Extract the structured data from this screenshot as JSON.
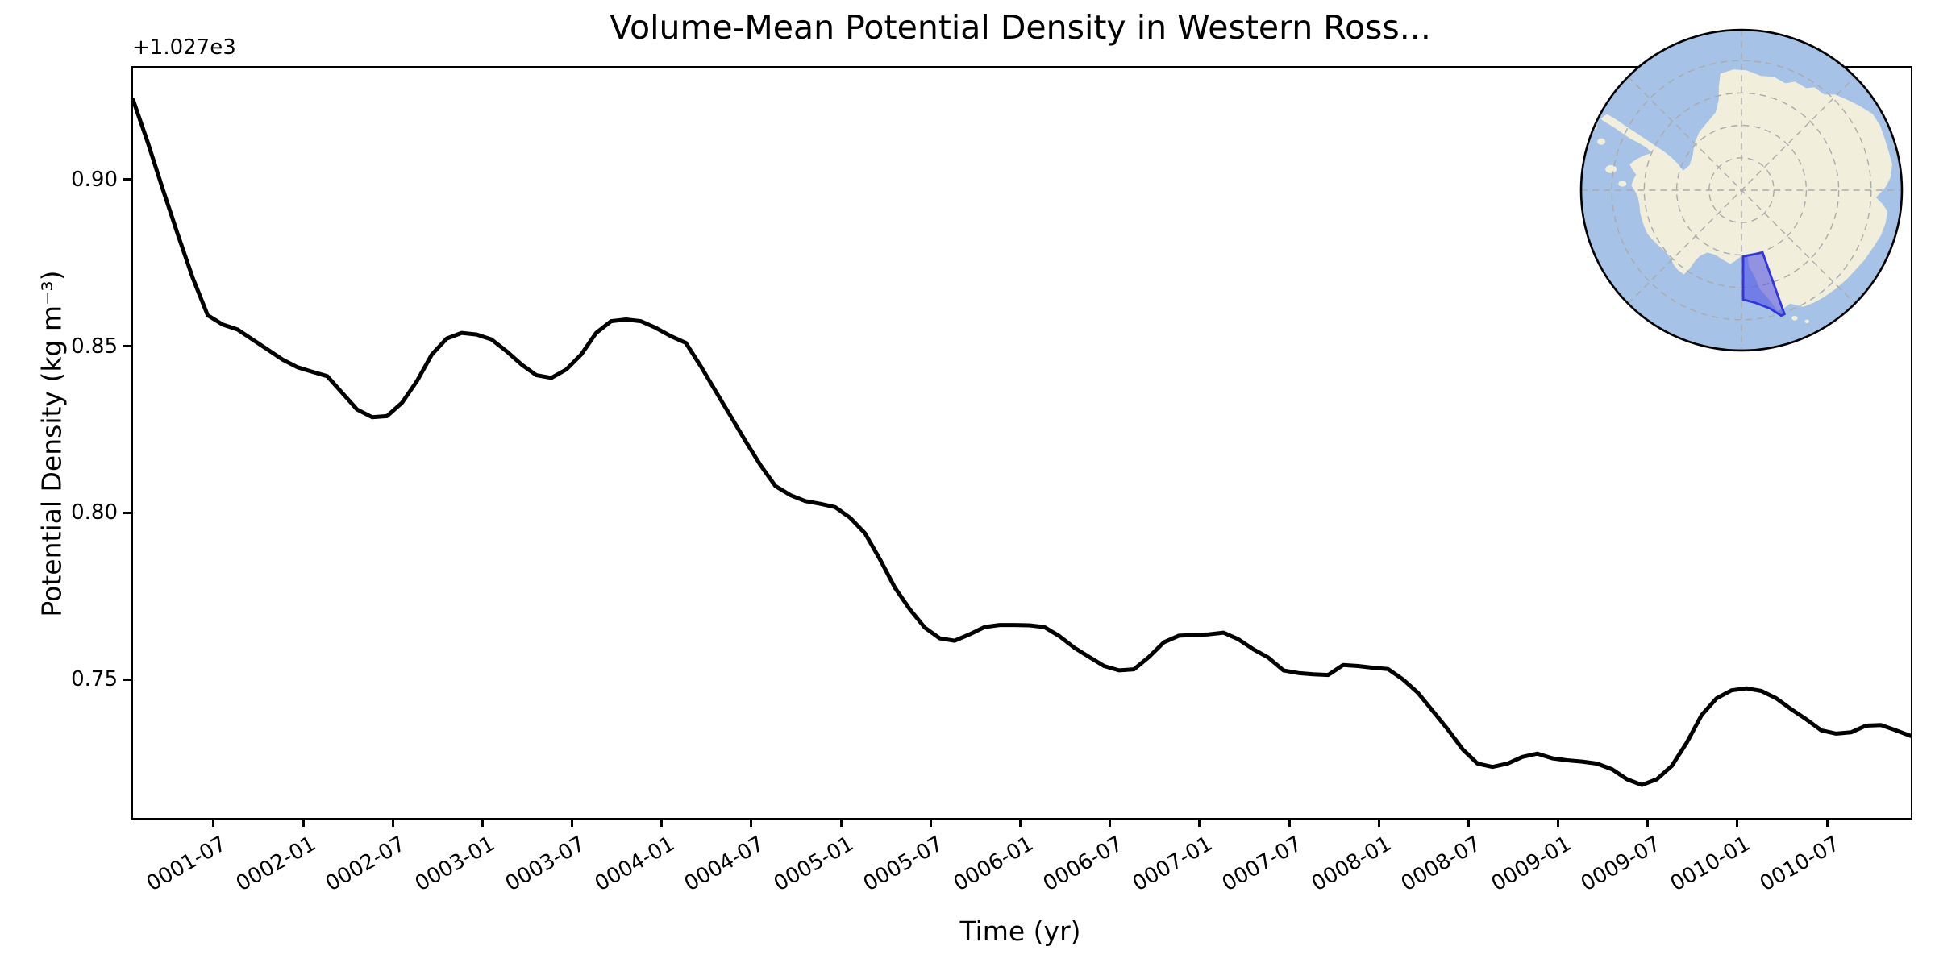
{
  "title": "Volume-Mean Potential Density in Western Ross...",
  "axes": {
    "xlabel": "Time (yr)",
    "ylabel": "Potential Density (kg m⁻³)",
    "offset_text": "+1.027e3",
    "x_tick_labels": [
      "0001-07",
      "0002-01",
      "0002-07",
      "0003-01",
      "0003-07",
      "0004-01",
      "0004-07",
      "0005-01",
      "0005-07",
      "0006-01",
      "0006-07",
      "0007-01",
      "0007-07",
      "0008-01",
      "0008-07",
      "0009-01",
      "0009-07",
      "0010-01",
      "0010-07"
    ],
    "x_tick_positions_months": [
      5.5,
      11.5,
      17.5,
      23.5,
      29.5,
      35.5,
      41.5,
      47.5,
      53.5,
      59.5,
      65.5,
      71.5,
      77.5,
      83.5,
      89.5,
      95.5,
      101.5,
      107.5,
      113.5
    ],
    "y_tick_labels": [
      "0.90",
      "0.85",
      "0.80",
      "0.75"
    ],
    "y_tick_values": [
      0.9,
      0.85,
      0.8,
      0.75
    ]
  },
  "chart_data": {
    "type": "line",
    "title": "Volume-Mean Potential Density in Western Ross...",
    "xlabel": "Time (yr)",
    "ylabel": "Potential Density (kg m⁻³)",
    "y_offset": "+1.027e3",
    "y_offset_value": 1027,
    "ylim": [
      0.7089,
      0.9341
    ],
    "grid": false,
    "legend": "none",
    "line_color": "#000000",
    "line_width": 5,
    "x": [
      "0001-01",
      "0001-02",
      "0001-03",
      "0001-04",
      "0001-05",
      "0001-06",
      "0001-07",
      "0001-08",
      "0001-09",
      "0001-10",
      "0001-11",
      "0001-12",
      "0002-01",
      "0002-02",
      "0002-03",
      "0002-04",
      "0002-05",
      "0002-06",
      "0002-07",
      "0002-08",
      "0002-09",
      "0002-10",
      "0002-11",
      "0002-12",
      "0003-01",
      "0003-02",
      "0003-03",
      "0003-04",
      "0003-05",
      "0003-06",
      "0003-07",
      "0003-08",
      "0003-09",
      "0003-10",
      "0003-11",
      "0003-12",
      "0004-01",
      "0004-02",
      "0004-03",
      "0004-04",
      "0004-05",
      "0004-06",
      "0004-07",
      "0004-08",
      "0004-09",
      "0004-10",
      "0004-11",
      "0004-12",
      "0005-01",
      "0005-02",
      "0005-03",
      "0005-04",
      "0005-05",
      "0005-06",
      "0005-07",
      "0005-08",
      "0005-09",
      "0005-10",
      "0005-11",
      "0005-12",
      "0006-01",
      "0006-02",
      "0006-03",
      "0006-04",
      "0006-05",
      "0006-06",
      "0006-07",
      "0006-08",
      "0006-09",
      "0006-10",
      "0006-11",
      "0006-12",
      "0007-01",
      "0007-02",
      "0007-03",
      "0007-04",
      "0007-05",
      "0007-06",
      "0007-07",
      "0007-08",
      "0007-09",
      "0007-10",
      "0007-11",
      "0007-12",
      "0008-01",
      "0008-02",
      "0008-03",
      "0008-04",
      "0008-05",
      "0008-06",
      "0008-07",
      "0008-08",
      "0008-09",
      "0008-10",
      "0008-11",
      "0008-12",
      "0009-01",
      "0009-02",
      "0009-03",
      "0009-04",
      "0009-05",
      "0009-06",
      "0009-07",
      "0009-08",
      "0009-09",
      "0009-10",
      "0009-11",
      "0009-12",
      "0010-01",
      "0010-02",
      "0010-03",
      "0010-04",
      "0010-05",
      "0010-06",
      "0010-07",
      "0010-08",
      "0010-09",
      "0010-10",
      "0010-11",
      "0010-12"
    ],
    "series": [
      {
        "name": "volume-mean potential density (offset by +1.027e3 kg m⁻³)",
        "values": [
          0.9245,
          0.9115,
          0.8975,
          0.884,
          0.871,
          0.8598,
          0.857,
          0.8555,
          0.8525,
          0.8495,
          0.8465,
          0.8442,
          0.8428,
          0.8415,
          0.8365,
          0.8315,
          0.8292,
          0.8295,
          0.8335,
          0.84,
          0.848,
          0.8528,
          0.8545,
          0.854,
          0.8525,
          0.849,
          0.845,
          0.8418,
          0.841,
          0.8435,
          0.848,
          0.8545,
          0.858,
          0.8585,
          0.858,
          0.856,
          0.8535,
          0.8515,
          0.8445,
          0.837,
          0.8295,
          0.822,
          0.8148,
          0.8085,
          0.8058,
          0.804,
          0.8032,
          0.8022,
          0.799,
          0.7943,
          0.7865,
          0.778,
          0.7715,
          0.766,
          0.7628,
          0.7621,
          0.764,
          0.7662,
          0.7668,
          0.7668,
          0.7667,
          0.7662,
          0.7635,
          0.76,
          0.7572,
          0.7545,
          0.7532,
          0.7535,
          0.7572,
          0.7616,
          0.7636,
          0.7638,
          0.764,
          0.7645,
          0.7625,
          0.7595,
          0.757,
          0.7532,
          0.7524,
          0.752,
          0.7518,
          0.7548,
          0.7545,
          0.754,
          0.7536,
          0.7505,
          0.7465,
          0.741,
          0.7355,
          0.7295,
          0.7252,
          0.7242,
          0.7252,
          0.7272,
          0.7282,
          0.7268,
          0.7262,
          0.7258,
          0.7252,
          0.7235,
          0.7205,
          0.7188,
          0.7205,
          0.7245,
          0.7315,
          0.7398,
          0.7448,
          0.7472,
          0.7478,
          0.747,
          0.7448,
          0.7415,
          0.7385,
          0.7352,
          0.7342,
          0.7346,
          0.7366,
          0.7368,
          0.7352,
          0.7335
        ]
      }
    ]
  },
  "inset_map": {
    "kind": "south-polar antarctica locator globe",
    "ocean_color": "#a6c3e7",
    "land_color": "#f1efdb",
    "graticule_color": "#aaaaaa",
    "edge_color": "#000000",
    "region_fill": "#4646e6",
    "region_edge": "#3333e0",
    "region_fill_opacity": "0.55"
  }
}
